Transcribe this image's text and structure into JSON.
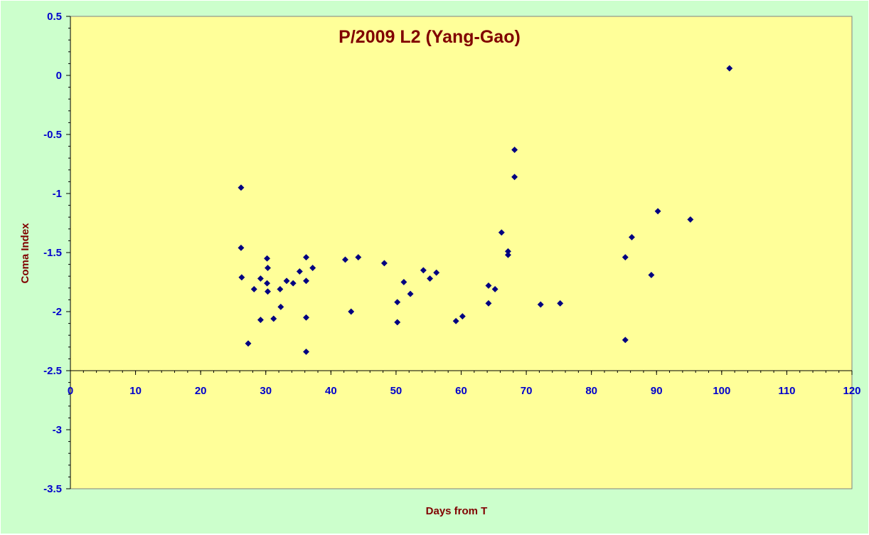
{
  "chart_data": {
    "type": "scatter",
    "title": "P/2009 L2 (Yang-Gao)",
    "xlabel": "Days from T",
    "ylabel": "Coma Index",
    "xlim": [
      0,
      120
    ],
    "ylim": [
      -3.5,
      0.5
    ],
    "x_ticks": [
      0,
      10,
      20,
      30,
      40,
      50,
      60,
      70,
      80,
      90,
      100,
      110,
      120
    ],
    "y_ticks": [
      0.5,
      0,
      -0.5,
      -1,
      -1.5,
      -2,
      -2.5,
      -3,
      -3.5
    ],
    "x_axis_at_y": -2.5,
    "grid": false,
    "legend": "none",
    "series": [
      {
        "marker": "diamond",
        "color": "#000080",
        "points": [
          [
            26.2,
            -0.95
          ],
          [
            26.2,
            -1.46
          ],
          [
            26.3,
            -1.71
          ],
          [
            27.3,
            -2.27
          ],
          [
            28.2,
            -1.81
          ],
          [
            29.2,
            -2.07
          ],
          [
            29.2,
            -1.72
          ],
          [
            30.2,
            -1.55
          ],
          [
            30.3,
            -1.63
          ],
          [
            30.2,
            -1.76
          ],
          [
            30.3,
            -1.83
          ],
          [
            31.2,
            -2.06
          ],
          [
            32.2,
            -1.81
          ],
          [
            32.3,
            -1.96
          ],
          [
            33.2,
            -1.74
          ],
          [
            34.2,
            -1.76
          ],
          [
            35.2,
            -1.66
          ],
          [
            36.2,
            -1.54
          ],
          [
            36.2,
            -1.74
          ],
          [
            36.2,
            -2.05
          ],
          [
            36.2,
            -2.34
          ],
          [
            37.2,
            -1.63
          ],
          [
            42.2,
            -1.56
          ],
          [
            43.1,
            -2.0
          ],
          [
            44.2,
            -1.54
          ],
          [
            48.2,
            -1.59
          ],
          [
            50.2,
            -1.92
          ],
          [
            50.2,
            -2.09
          ],
          [
            51.2,
            -1.75
          ],
          [
            52.2,
            -1.85
          ],
          [
            54.2,
            -1.65
          ],
          [
            55.2,
            -1.72
          ],
          [
            56.2,
            -1.67
          ],
          [
            59.2,
            -2.08
          ],
          [
            60.2,
            -2.04
          ],
          [
            64.2,
            -1.78
          ],
          [
            64.2,
            -1.93
          ],
          [
            65.2,
            -1.81
          ],
          [
            66.2,
            -1.33
          ],
          [
            67.2,
            -1.49
          ],
          [
            67.2,
            -1.52
          ],
          [
            68.2,
            -0.63
          ],
          [
            68.2,
            -0.86
          ],
          [
            72.2,
            -1.94
          ],
          [
            75.2,
            -1.93
          ],
          [
            85.2,
            -1.54
          ],
          [
            85.2,
            -2.24
          ],
          [
            86.2,
            -1.37
          ],
          [
            89.2,
            -1.69
          ],
          [
            90.2,
            -1.15
          ],
          [
            95.2,
            -1.22
          ],
          [
            101.2,
            0.06
          ]
        ]
      }
    ]
  },
  "colors": {
    "outer_background": "#ccffcc",
    "plot_background": "#ffff99",
    "axis": "#000000",
    "tick_label": "#0000cc",
    "title": "#800000",
    "marker": "#000080"
  }
}
